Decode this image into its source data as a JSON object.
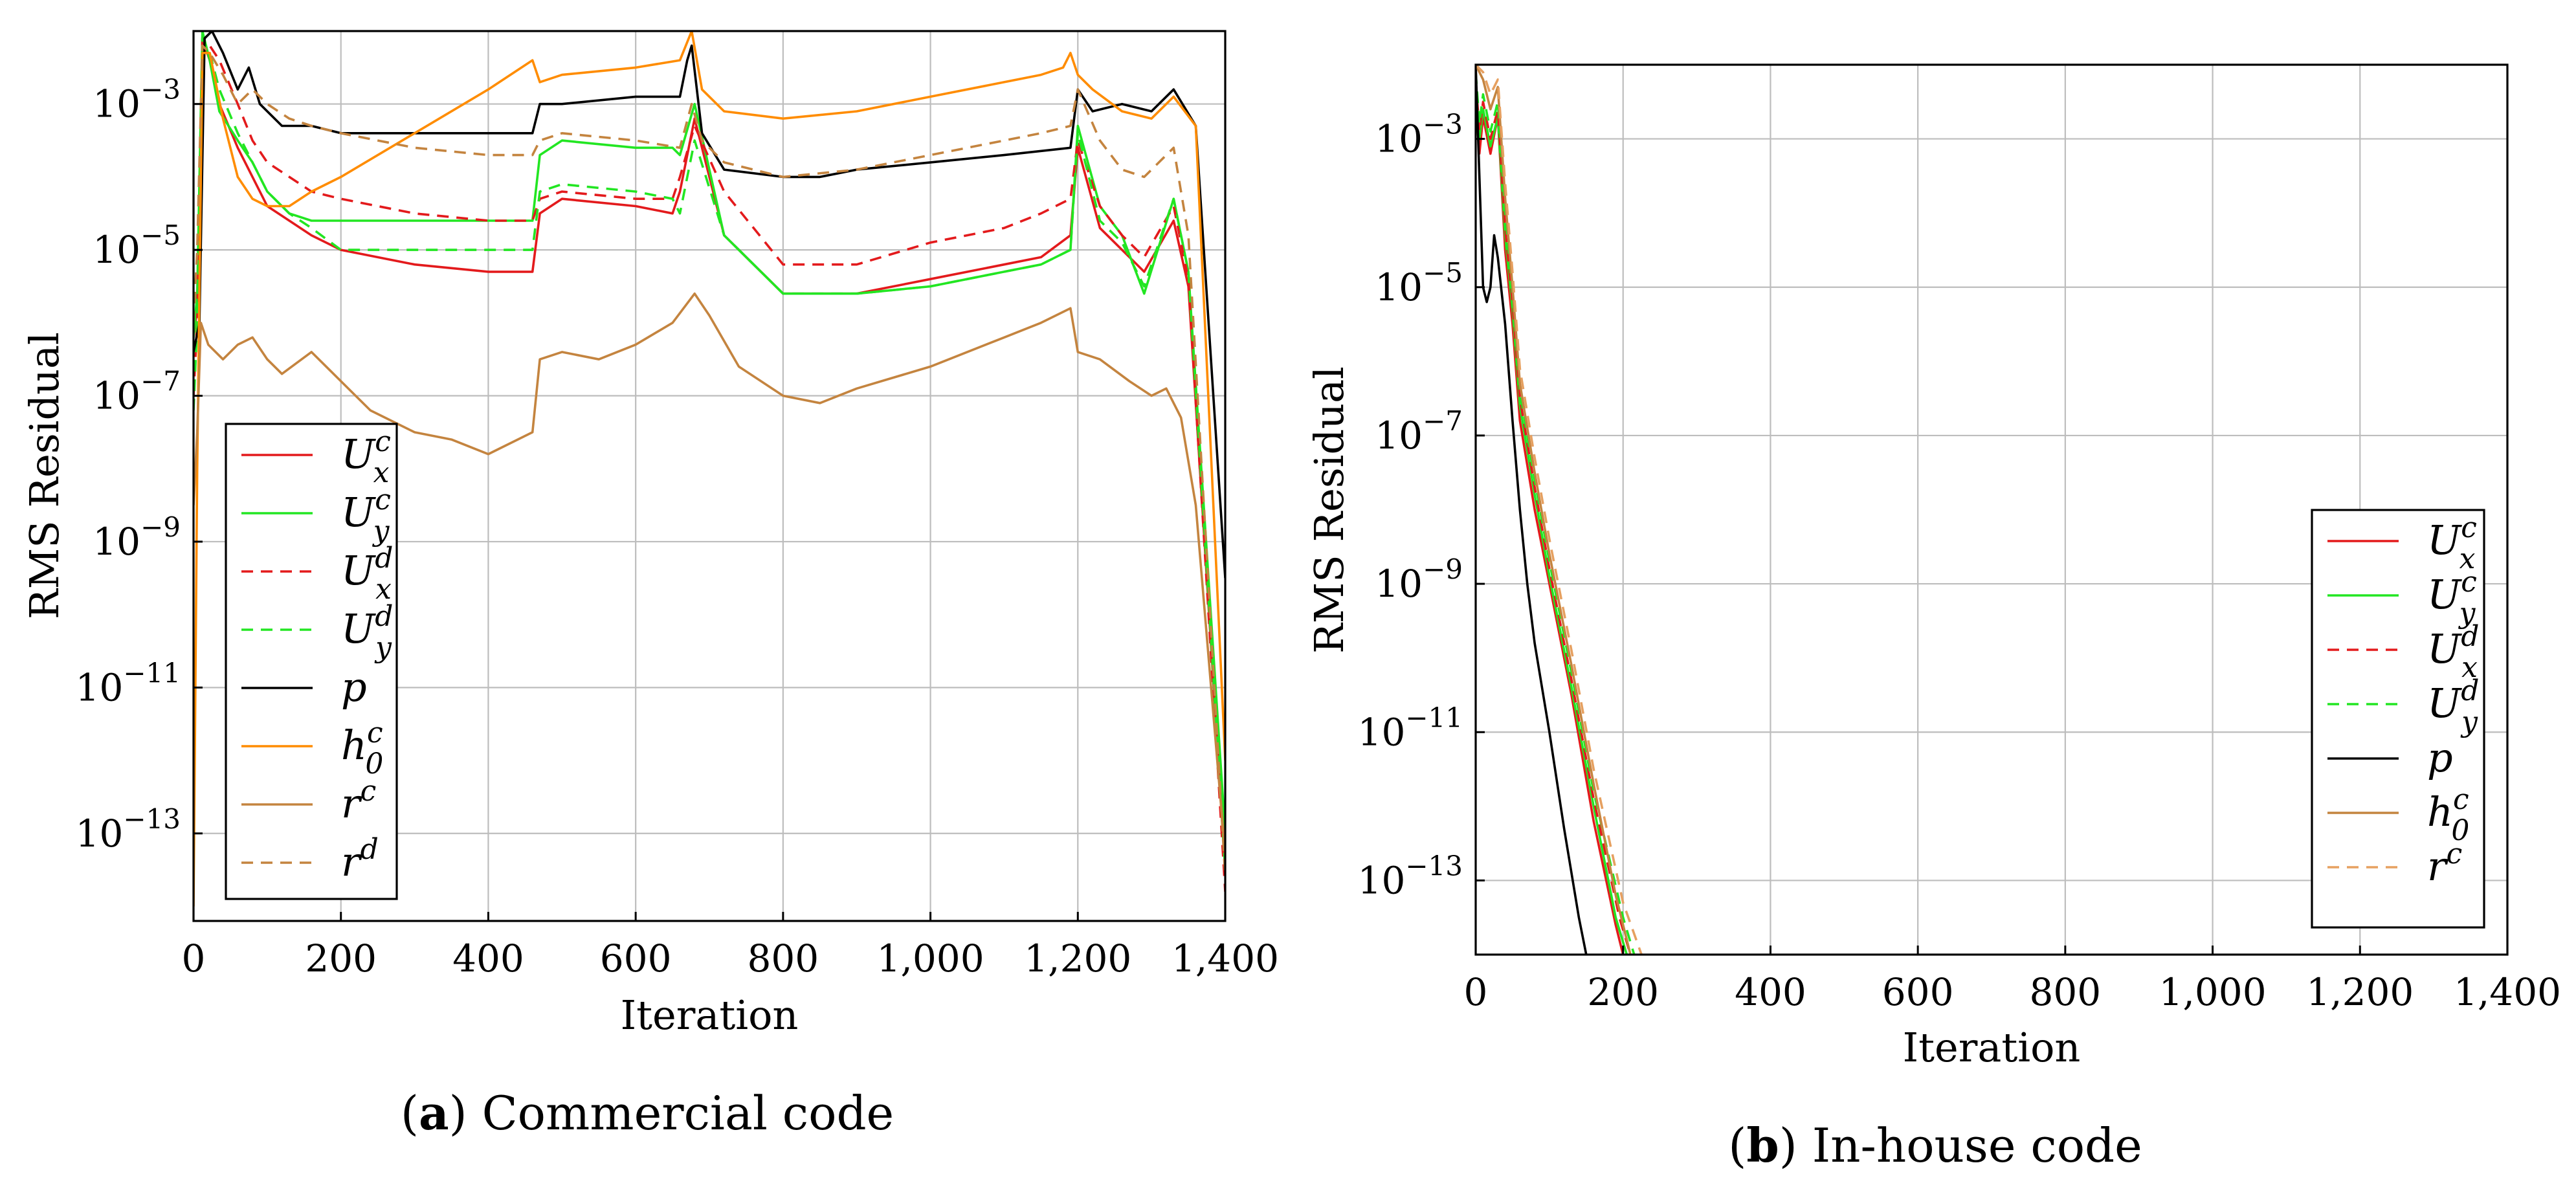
{
  "colors": {
    "ux": "#e31a1c",
    "uy": "#22e622",
    "p": "#000000",
    "h0": "#ff8c00",
    "r": "#c4843f"
  },
  "chart_data": [
    {
      "type": "line",
      "panel_letter": "a",
      "caption": "Commercial code",
      "xlabel": "Iteration",
      "ylabel": "RMS Residual",
      "xlim": [
        0,
        1400
      ],
      "ylim_log10": [
        -14.2,
        -2
      ],
      "yscale": "log",
      "xticks": [
        0,
        200,
        400,
        600,
        800,
        1000,
        1200,
        1400
      ],
      "xtick_labels": [
        "0",
        "200",
        "400",
        "600",
        "800",
        "1,000",
        "1,200",
        "1,400"
      ],
      "yticks_exp": [
        -3,
        -5,
        -7,
        -9,
        -11,
        -13
      ],
      "legend_position": "bottom-left",
      "series": [
        {
          "key": "Uxc",
          "name": "U",
          "sup": "c",
          "sub": "x",
          "color": "#e31a1c",
          "dash": "solid",
          "x": [
            0,
            5,
            12,
            22,
            35,
            60,
            80,
            100,
            130,
            160,
            200,
            300,
            400,
            460,
            470,
            500,
            600,
            650,
            660,
            680,
            720,
            800,
            900,
            1000,
            1100,
            1150,
            1190,
            1200,
            1230,
            1260,
            1290,
            1330,
            1350,
            1400
          ],
          "y_log10": [
            -6.2,
            -5.8,
            -2.1,
            -2.4,
            -3.0,
            -3.6,
            -4.0,
            -4.4,
            -4.6,
            -4.8,
            -5.0,
            -5.2,
            -5.3,
            -5.3,
            -4.5,
            -4.3,
            -4.4,
            -4.5,
            -4.2,
            -3.2,
            -4.8,
            -5.6,
            -5.6,
            -5.4,
            -5.2,
            -5.1,
            -4.8,
            -3.6,
            -4.7,
            -5.0,
            -5.3,
            -4.6,
            -5.5,
            -13.5
          ]
        },
        {
          "key": "Uyc",
          "name": "U",
          "sup": "c",
          "sub": "y",
          "color": "#22e622",
          "dash": "solid",
          "x": [
            0,
            5,
            12,
            22,
            35,
            60,
            80,
            100,
            130,
            160,
            200,
            300,
            400,
            460,
            470,
            500,
            600,
            650,
            660,
            680,
            720,
            800,
            900,
            1000,
            1100,
            1150,
            1190,
            1200,
            1230,
            1260,
            1290,
            1330,
            1350,
            1400
          ],
          "y_log10": [
            -6.2,
            -5.6,
            -2.0,
            -2.4,
            -3.1,
            -3.5,
            -3.8,
            -4.2,
            -4.5,
            -4.6,
            -4.6,
            -4.6,
            -4.6,
            -4.6,
            -3.7,
            -3.5,
            -3.6,
            -3.6,
            -3.7,
            -3.0,
            -4.8,
            -5.6,
            -5.6,
            -5.5,
            -5.3,
            -5.2,
            -5.0,
            -3.3,
            -4.4,
            -4.8,
            -5.6,
            -4.3,
            -5.3,
            -13.0
          ]
        },
        {
          "key": "Uxd",
          "name": "U",
          "sup": "d",
          "sub": "x",
          "color": "#e31a1c",
          "dash": "dashed",
          "x": [
            0,
            5,
            12,
            22,
            35,
            60,
            80,
            100,
            130,
            160,
            200,
            300,
            400,
            460,
            470,
            500,
            600,
            650,
            660,
            680,
            720,
            800,
            900,
            1000,
            1100,
            1150,
            1190,
            1200,
            1230,
            1260,
            1290,
            1330,
            1350,
            1400
          ],
          "y_log10": [
            -7.0,
            -6.0,
            -2.1,
            -2.2,
            -2.4,
            -3.0,
            -3.5,
            -3.8,
            -4.0,
            -4.2,
            -4.3,
            -4.5,
            -4.6,
            -4.6,
            -4.3,
            -4.2,
            -4.3,
            -4.3,
            -4.0,
            -3.3,
            -4.2,
            -5.2,
            -5.2,
            -4.9,
            -4.7,
            -4.5,
            -4.3,
            -3.5,
            -4.4,
            -4.8,
            -5.1,
            -4.4,
            -5.4,
            -13.8
          ]
        },
        {
          "key": "Uyd",
          "name": "U",
          "sup": "d",
          "sub": "y",
          "color": "#22e622",
          "dash": "dashed",
          "x": [
            0,
            5,
            12,
            22,
            35,
            60,
            80,
            100,
            130,
            160,
            200,
            300,
            400,
            460,
            470,
            500,
            600,
            650,
            660,
            680,
            720,
            800,
            900,
            1000,
            1100,
            1150,
            1190,
            1200,
            1230,
            1260,
            1290,
            1330,
            1350,
            1400
          ],
          "y_log10": [
            -7.2,
            -6.0,
            -2.1,
            -2.3,
            -2.8,
            -3.4,
            -3.8,
            -4.2,
            -4.5,
            -4.7,
            -5.0,
            -5.0,
            -5.0,
            -5.0,
            -4.2,
            -4.1,
            -4.2,
            -4.3,
            -4.5,
            -3.5,
            -4.8,
            -5.6,
            -5.6,
            -5.5,
            -5.3,
            -5.2,
            -5.0,
            -3.4,
            -4.6,
            -4.9,
            -5.5,
            -4.3,
            -5.3,
            -13.5
          ]
        },
        {
          "key": "p",
          "name": "p",
          "sup": "",
          "sub": "",
          "color": "#000000",
          "dash": "solid",
          "x": [
            0,
            8,
            15,
            25,
            40,
            60,
            75,
            90,
            120,
            160,
            200,
            300,
            400,
            460,
            470,
            500,
            600,
            660,
            670,
            676,
            690,
            720,
            800,
            850,
            900,
            1000,
            1100,
            1190,
            1200,
            1220,
            1260,
            1300,
            1330,
            1360,
            1400
          ],
          "y_log10": [
            -6.4,
            -6.0,
            -2.1,
            -2.0,
            -2.3,
            -2.8,
            -2.5,
            -3.0,
            -3.3,
            -3.3,
            -3.4,
            -3.4,
            -3.4,
            -3.4,
            -3.0,
            -3.0,
            -2.9,
            -2.9,
            -2.4,
            -2.2,
            -3.4,
            -3.9,
            -4.0,
            -4.0,
            -3.9,
            -3.8,
            -3.7,
            -3.6,
            -2.8,
            -3.1,
            -3.0,
            -3.1,
            -2.8,
            -3.3,
            -9.5
          ]
        },
        {
          "key": "h0c",
          "name": "h",
          "sup": "c",
          "sub": "0",
          "color": "#ff8c00",
          "dash": "solid",
          "x": [
            0,
            5,
            12,
            22,
            40,
            60,
            80,
            100,
            130,
            160,
            200,
            300,
            400,
            460,
            470,
            500,
            600,
            660,
            676,
            690,
            720,
            800,
            900,
            1000,
            1100,
            1150,
            1180,
            1190,
            1200,
            1220,
            1260,
            1300,
            1330,
            1360,
            1400
          ],
          "y_log10": [
            -14.0,
            -8.0,
            -2.3,
            -2.3,
            -3.2,
            -4.0,
            -4.3,
            -4.4,
            -4.4,
            -4.2,
            -4.0,
            -3.4,
            -2.8,
            -2.4,
            -2.7,
            -2.6,
            -2.5,
            -2.4,
            -2.0,
            -2.8,
            -3.1,
            -3.2,
            -3.1,
            -2.9,
            -2.7,
            -2.6,
            -2.5,
            -2.3,
            -2.6,
            -2.8,
            -3.1,
            -3.2,
            -2.9,
            -3.3,
            -12.0
          ]
        },
        {
          "key": "rc",
          "name": "r",
          "sup": "c",
          "sub": "",
          "color": "#c4843f",
          "dash": "solid",
          "x": [
            0,
            5,
            10,
            20,
            40,
            60,
            80,
            100,
            120,
            160,
            200,
            240,
            300,
            350,
            400,
            440,
            460,
            470,
            500,
            550,
            600,
            650,
            680,
            700,
            740,
            800,
            850,
            900,
            1000,
            1100,
            1150,
            1190,
            1200,
            1230,
            1270,
            1300,
            1320,
            1340,
            1360,
            1400
          ],
          "y_log10": [
            -8.5,
            -7.5,
            -6.0,
            -6.3,
            -6.5,
            -6.3,
            -6.2,
            -6.5,
            -6.7,
            -6.4,
            -6.8,
            -7.2,
            -7.5,
            -7.6,
            -7.8,
            -7.6,
            -7.5,
            -6.5,
            -6.4,
            -6.5,
            -6.3,
            -6.0,
            -5.6,
            -5.9,
            -6.6,
            -7.0,
            -7.1,
            -6.9,
            -6.6,
            -6.2,
            -6.0,
            -5.8,
            -6.4,
            -6.5,
            -6.8,
            -7.0,
            -6.9,
            -7.3,
            -8.5,
            -13.3
          ]
        },
        {
          "key": "rd",
          "name": "r",
          "sup": "d",
          "sub": "",
          "color": "#c4843f",
          "dash": "dashed",
          "x": [
            0,
            5,
            12,
            22,
            40,
            60,
            80,
            100,
            130,
            160,
            200,
            300,
            400,
            460,
            470,
            500,
            600,
            660,
            676,
            690,
            720,
            800,
            900,
            1000,
            1100,
            1150,
            1190,
            1200,
            1230,
            1260,
            1290,
            1330,
            1350,
            1400
          ],
          "y_log10": [
            -6.0,
            -5.0,
            -2.2,
            -2.3,
            -2.6,
            -3.0,
            -2.8,
            -3.0,
            -3.2,
            -3.3,
            -3.4,
            -3.6,
            -3.7,
            -3.7,
            -3.5,
            -3.4,
            -3.5,
            -3.6,
            -3.0,
            -3.5,
            -3.8,
            -4.0,
            -3.9,
            -3.7,
            -3.5,
            -3.4,
            -3.3,
            -2.8,
            -3.5,
            -3.9,
            -4.0,
            -3.6,
            -4.8,
            -13.6
          ]
        }
      ]
    },
    {
      "type": "line",
      "panel_letter": "b",
      "caption": "In-house code",
      "xlabel": "Iteration",
      "ylabel": "RMS Residual",
      "xlim": [
        0,
        1400
      ],
      "ylim_log10": [
        -14,
        -2
      ],
      "yscale": "log",
      "xticks": [
        0,
        200,
        400,
        600,
        800,
        1000,
        1200,
        1400
      ],
      "xtick_labels": [
        "0",
        "200",
        "400",
        "600",
        "800",
        "1,000",
        "1,200",
        "1,400"
      ],
      "yticks_exp": [
        -3,
        -5,
        -7,
        -9,
        -11,
        -13
      ],
      "legend_position": "bottom-right",
      "series": [
        {
          "key": "Uxc",
          "name": "U",
          "sup": "c",
          "sub": "x",
          "color": "#e31a1c",
          "dash": "solid",
          "x": [
            0,
            5,
            10,
            20,
            30,
            40,
            50,
            60,
            80,
            100,
            130,
            160,
            190,
            200
          ],
          "y_log10": [
            -2.5,
            -3.2,
            -2.7,
            -3.2,
            -2.7,
            -4.5,
            -5.5,
            -6.8,
            -8.0,
            -9.0,
            -10.5,
            -12.2,
            -13.6,
            -14.0
          ]
        },
        {
          "key": "Uyc",
          "name": "U",
          "sup": "c",
          "sub": "y",
          "color": "#22e622",
          "dash": "solid",
          "x": [
            0,
            5,
            10,
            20,
            30,
            40,
            50,
            60,
            80,
            100,
            130,
            160,
            190,
            205
          ],
          "y_log10": [
            -2.3,
            -3.0,
            -2.6,
            -3.1,
            -2.7,
            -4.3,
            -5.3,
            -6.6,
            -7.8,
            -8.9,
            -10.4,
            -12.0,
            -13.5,
            -14.0
          ]
        },
        {
          "key": "Uxd",
          "name": "U",
          "sup": "d",
          "sub": "x",
          "color": "#e31a1c",
          "dash": "dashed",
          "x": [
            0,
            5,
            10,
            20,
            30,
            40,
            50,
            60,
            80,
            100,
            130,
            160,
            195,
            210
          ],
          "y_log10": [
            -2.2,
            -2.9,
            -2.5,
            -3.0,
            -2.6,
            -4.2,
            -5.2,
            -6.5,
            -7.7,
            -8.8,
            -10.3,
            -11.9,
            -13.5,
            -14.0
          ]
        },
        {
          "key": "Uyd",
          "name": "U",
          "sup": "d",
          "sub": "y",
          "color": "#22e622",
          "dash": "dashed",
          "x": [
            0,
            5,
            10,
            20,
            30,
            40,
            50,
            60,
            80,
            100,
            130,
            160,
            200,
            215
          ],
          "y_log10": [
            -2.1,
            -2.8,
            -2.4,
            -2.9,
            -2.5,
            -4.0,
            -5.1,
            -6.4,
            -7.6,
            -8.7,
            -10.2,
            -11.8,
            -13.5,
            -14.0
          ]
        },
        {
          "key": "p",
          "name": "p",
          "sup": "",
          "sub": "",
          "color": "#000000",
          "dash": "solid",
          "x": [
            0,
            5,
            10,
            15,
            20,
            25,
            30,
            40,
            50,
            60,
            70,
            80,
            100,
            120,
            140,
            150
          ],
          "y_log10": [
            -2.0,
            -3.5,
            -5.0,
            -5.2,
            -5.0,
            -4.3,
            -4.6,
            -5.5,
            -6.8,
            -8.0,
            -9.0,
            -9.8,
            -11.0,
            -12.3,
            -13.5,
            -14.0
          ]
        },
        {
          "key": "h0c",
          "name": "h",
          "sup": "c",
          "sub": "0",
          "color": "#c4843f",
          "dash": "solid",
          "x": [
            0,
            10,
            20,
            30,
            40,
            50,
            60,
            80,
            100,
            130,
            160,
            190,
            210
          ],
          "y_log10": [
            -2.0,
            -2.2,
            -2.6,
            -2.3,
            -3.8,
            -5.0,
            -6.3,
            -7.5,
            -8.6,
            -10.1,
            -11.7,
            -13.2,
            -14.0
          ]
        },
        {
          "key": "rc",
          "name": "r",
          "sup": "c",
          "sub": "",
          "color": "#e6a060",
          "dash": "dashed",
          "x": [
            0,
            10,
            20,
            30,
            40,
            50,
            60,
            80,
            100,
            130,
            160,
            200,
            225
          ],
          "y_log10": [
            -2.0,
            -2.1,
            -2.4,
            -2.2,
            -3.6,
            -4.8,
            -6.1,
            -7.3,
            -8.4,
            -9.9,
            -11.5,
            -13.3,
            -14.0
          ]
        }
      ]
    }
  ]
}
